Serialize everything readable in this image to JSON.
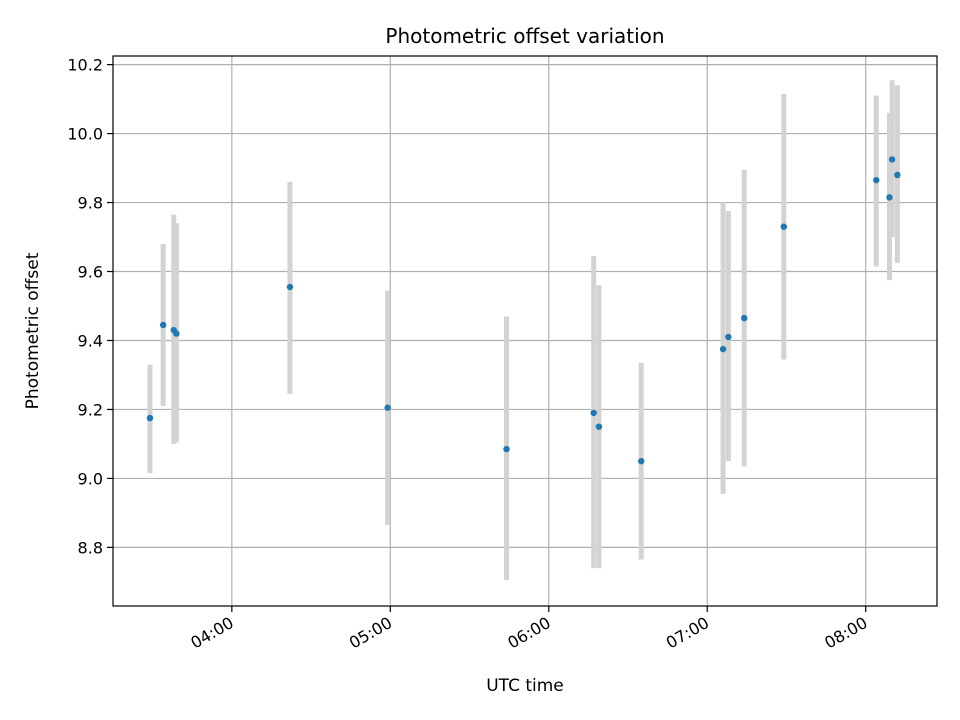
{
  "chart_data": {
    "type": "scatter",
    "title": "Photometric offset variation",
    "xlabel": "UTC time",
    "ylabel": "Photometric offset",
    "x_unit": "time of day (HH:MM)",
    "xlim": [
      "03:15",
      "08:27"
    ],
    "ylim": [
      8.63,
      10.225
    ],
    "grid": true,
    "legend": "none",
    "x_ticks": [
      "04:00",
      "05:00",
      "06:00",
      "07:00",
      "08:00"
    ],
    "y_ticks": [
      "8.8",
      "9.0",
      "9.2",
      "9.4",
      "9.6",
      "9.8",
      "10.0",
      "10.2"
    ],
    "series": [
      {
        "color": "#1f77b4",
        "errorbar_color": "#d3d3d3",
        "points": [
          {
            "t": "03:29",
            "y": 9.175,
            "ylo": 9.015,
            "yhi": 9.33
          },
          {
            "t": "03:34",
            "y": 9.445,
            "ylo": 9.21,
            "yhi": 9.68
          },
          {
            "t": "03:38",
            "y": 9.43,
            "ylo": 9.1,
            "yhi": 9.765
          },
          {
            "t": "03:39",
            "y": 9.42,
            "ylo": 9.105,
            "yhi": 9.74
          },
          {
            "t": "04:22",
            "y": 9.555,
            "ylo": 9.245,
            "yhi": 9.86
          },
          {
            "t": "04:59",
            "y": 9.205,
            "ylo": 8.865,
            "yhi": 9.545
          },
          {
            "t": "05:44",
            "y": 9.085,
            "ylo": 8.705,
            "yhi": 9.47
          },
          {
            "t": "06:17",
            "y": 9.19,
            "ylo": 8.74,
            "yhi": 9.645
          },
          {
            "t": "06:19",
            "y": 9.15,
            "ylo": 8.74,
            "yhi": 9.56
          },
          {
            "t": "06:35",
            "y": 9.05,
            "ylo": 8.765,
            "yhi": 9.335
          },
          {
            "t": "07:06",
            "y": 9.375,
            "ylo": 8.955,
            "yhi": 9.8
          },
          {
            "t": "07:08",
            "y": 9.41,
            "ylo": 9.05,
            "yhi": 9.775
          },
          {
            "t": "07:14",
            "y": 9.465,
            "ylo": 9.035,
            "yhi": 9.895
          },
          {
            "t": "07:29",
            "y": 9.73,
            "ylo": 9.345,
            "yhi": 10.115
          },
          {
            "t": "08:04",
            "y": 9.865,
            "ylo": 9.615,
            "yhi": 10.11
          },
          {
            "t": "08:09",
            "y": 9.815,
            "ylo": 9.575,
            "yhi": 10.06
          },
          {
            "t": "08:10",
            "y": 9.925,
            "ylo": 9.7,
            "yhi": 10.155
          },
          {
            "t": "08:12",
            "y": 9.88,
            "ylo": 9.625,
            "yhi": 10.14
          }
        ]
      }
    ]
  }
}
